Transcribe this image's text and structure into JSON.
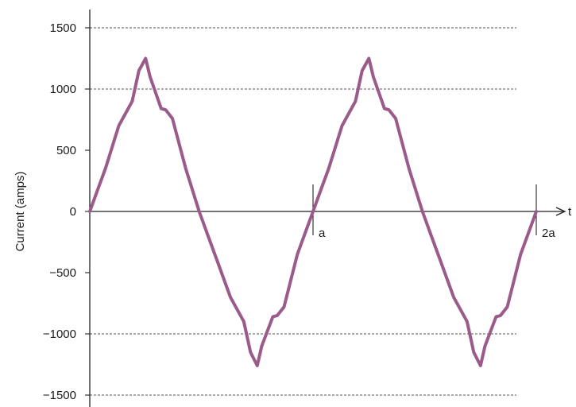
{
  "chart_data": {
    "type": "line",
    "title": "",
    "xlabel": "t",
    "ylabel": "Current (amps)",
    "ylim": [
      -1500,
      1500
    ],
    "yticks": [
      1500,
      1000,
      500,
      0,
      -500,
      -1000,
      -1500
    ],
    "ytick_labels": [
      "1500",
      "1000",
      "500",
      "0",
      "−500",
      "−1000",
      "−1500"
    ],
    "xlim": [
      0,
      2
    ],
    "x_markers": [
      {
        "x": 1,
        "label": "a"
      },
      {
        "x": 2,
        "label": "2a"
      }
    ],
    "grid": "horizontal dashed at ±1000 and ±1500",
    "colors": {
      "curve": "#9a5a8a",
      "axes": "#222222",
      "grid": "#555555"
    },
    "series": [
      {
        "x": [
          0,
          0.04,
          0.07,
          0.13,
          0.19,
          0.22,
          0.25,
          0.27,
          0.32,
          0.34,
          0.37,
          0.43,
          0.49,
          0.53,
          0.57,
          0.63,
          0.69,
          0.72,
          0.75,
          0.77,
          0.82,
          0.84,
          0.87,
          0.93,
          1.0,
          1.04,
          1.07,
          1.13,
          1.19,
          1.22,
          1.25,
          1.27,
          1.32,
          1.34,
          1.37,
          1.43,
          1.49,
          1.53,
          1.57,
          1.63,
          1.69,
          1.72,
          1.75,
          1.77,
          1.82,
          1.84,
          1.87,
          1.93,
          2.0
        ],
        "y": [
          0,
          200,
          350,
          700,
          900,
          1150,
          1250,
          1100,
          840,
          830,
          760,
          350,
          0,
          -200,
          -400,
          -700,
          -900,
          -1150,
          -1260,
          -1100,
          -860,
          -850,
          -780,
          -350,
          0,
          200,
          350,
          700,
          900,
          1150,
          1250,
          1100,
          840,
          830,
          760,
          350,
          0,
          -200,
          -400,
          -700,
          -900,
          -1150,
          -1260,
          -1100,
          -860,
          -850,
          -780,
          -350,
          0
        ]
      }
    ]
  }
}
